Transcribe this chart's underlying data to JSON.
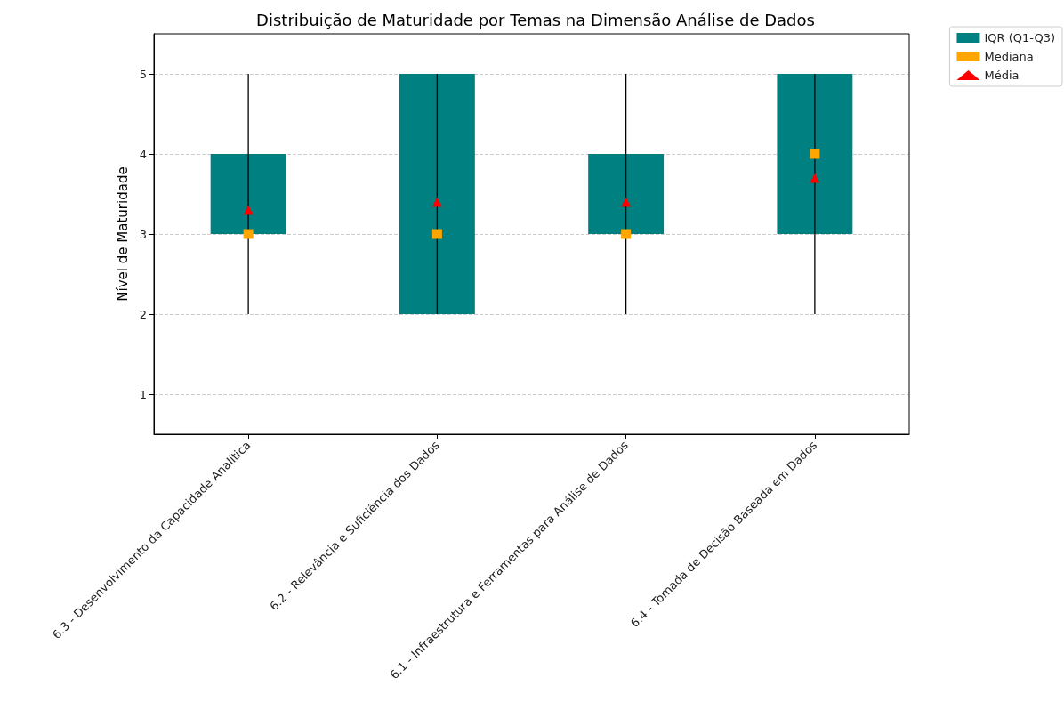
{
  "chart_data": {
    "type": "box",
    "title": "Distribuição de Maturidade por Temas na Dimensão Análise de Dados",
    "ylabel": "Nível de Maturidade",
    "categories": [
      "6.3 - Desenvolvimento da Capacidade Analítica",
      "6.2 - Relevância e Suficiência dos Dados",
      "6.1 - Infraestrutura e Ferramentas para Análise de Dados",
      "6.4 - Tomada de Decisão Baseada em Dados"
    ],
    "series": [
      {
        "name": "IQR (Q1-Q3)",
        "color": "#008080",
        "boxes": [
          {
            "low": 2,
            "q1": 3,
            "q3": 4,
            "high": 5
          },
          {
            "low": 2,
            "q1": 2,
            "q3": 5,
            "high": 5
          },
          {
            "low": 2,
            "q1": 3,
            "q3": 4,
            "high": 5
          },
          {
            "low": 2,
            "q1": 3,
            "q3": 5,
            "high": 5
          }
        ]
      },
      {
        "type": "scatter",
        "name": "Mediana",
        "color": "#ffa500",
        "marker": "square",
        "x": [
          "6.3 - Desenvolvimento da Capacidade Analítica",
          "6.2 - Relevância e Suficiência dos Dados",
          "6.1 - Infraestrutura e Ferramentas para Análise de Dados",
          "6.4 - Tomada de Decisão Baseada em Dados"
        ],
        "values": [
          3,
          3,
          3,
          4
        ]
      },
      {
        "type": "scatter",
        "name": "Média",
        "color": "#ff0000",
        "marker": "triangle",
        "x": [
          "6.3 - Desenvolvimento da Capacidade Analítica",
          "6.2 - Relevância e Suficiência dos Dados",
          "6.1 - Infraestrutura e Ferramentas para Análise de Dados",
          "6.4 - Tomada de Decisão Baseada em Dados"
        ],
        "values": [
          3.3,
          3.4,
          3.4,
          3.7
        ]
      }
    ],
    "ylim": [
      0.5,
      5.5
    ],
    "yticks": [
      1,
      2,
      3,
      4,
      5
    ],
    "grid": "y",
    "legend": "top right"
  }
}
